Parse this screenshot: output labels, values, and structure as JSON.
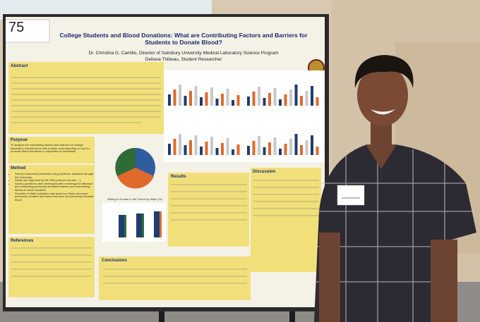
{
  "poster": {
    "number": "75",
    "title": "College Students and Blood Donations: What are Contributing Factors and Barriers for Students to Donate Blood?",
    "authors": [
      "Dr. Christina G. Camillo, Director of Salisbury University Medical Laboratory Science Program",
      "Deltava Thibeau, Student Researcher"
    ],
    "sections": {
      "abstract": "Abstract",
      "purpose": "Purpose",
      "purpose_text": "To analyze the contributing factors and barriers for college students to donate blood with a better understanding on how to promote blood donations to population of individuals",
      "method": "Method",
      "method_items": [
        "Survey instrument presented using Qualtrics, available through the University",
        "Study was approved by the IRB (protocol number ...)",
        "Survey questions were developed after reviewing the literature and evaluating previously identified barriers and contributing factors to blood donation",
        "Donation of data evaluation was based on those who have previously donated and those that have not previously donated blood"
      ],
      "results": "Results",
      "discussion": "Discussion",
      "references": "References",
      "conclusions": "Conclusions"
    },
    "chart_caption": "Willing to Donate in the Future by Major (%)"
  }
}
